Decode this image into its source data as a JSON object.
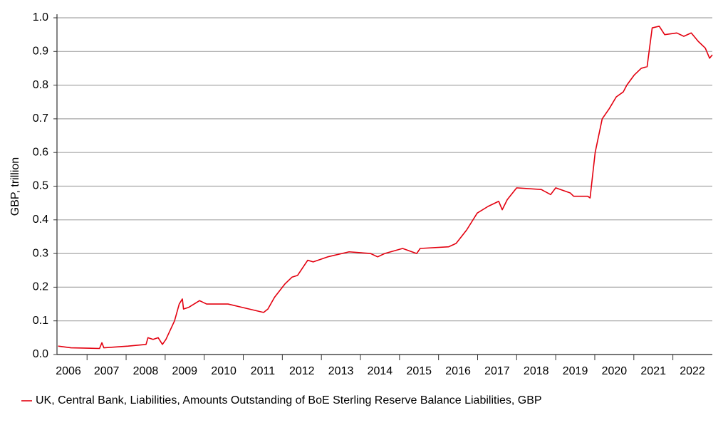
{
  "chart_data": {
    "type": "line",
    "y_label": "GBP, trillion",
    "x": [
      2006.26,
      2006.59,
      2007.32,
      2007.38,
      2007.43,
      2008.05,
      2008.51,
      2008.56,
      2008.69,
      2008.82,
      2008.93,
      2009.02,
      2009.24,
      2009.36,
      2009.44,
      2009.47,
      2009.6,
      2009.88,
      2010.06,
      2010.61,
      2010.97,
      2011.52,
      2011.63,
      2011.8,
      2012.07,
      2012.25,
      2012.39,
      2012.65,
      2012.79,
      2013.16,
      2013.71,
      2014.26,
      2014.44,
      2014.62,
      2015.08,
      2015.44,
      2015.53,
      2016.26,
      2016.45,
      2016.72,
      2016.99,
      2017.27,
      2017.54,
      2017.63,
      2017.76,
      2018.0,
      2018.63,
      2018.87,
      2019.0,
      2019.37,
      2019.46,
      2019.82,
      2019.88,
      2020.01,
      2020.19,
      2020.37,
      2020.55,
      2020.73,
      2020.82,
      2021.01,
      2021.19,
      2021.34,
      2021.47,
      2021.65,
      2021.79,
      2022.1,
      2022.28,
      2022.47,
      2022.65,
      2022.83,
      2022.94,
      2023.01
    ],
    "series": [
      {
        "name": "UK, Central Bank, Liabilities, Amounts Outstanding of BoE Sterling Reserve Balance Liabilities, GBP",
        "color": "#e3000f",
        "values": [
          0.025,
          0.02,
          0.018,
          0.035,
          0.02,
          0.025,
          0.03,
          0.05,
          0.045,
          0.05,
          0.03,
          0.045,
          0.1,
          0.15,
          0.165,
          0.135,
          0.14,
          0.16,
          0.15,
          0.15,
          0.14,
          0.125,
          0.135,
          0.17,
          0.21,
          0.23,
          0.235,
          0.28,
          0.275,
          0.29,
          0.305,
          0.3,
          0.29,
          0.3,
          0.315,
          0.3,
          0.315,
          0.32,
          0.33,
          0.37,
          0.42,
          0.44,
          0.455,
          0.43,
          0.46,
          0.495,
          0.49,
          0.475,
          0.495,
          0.48,
          0.47,
          0.47,
          0.465,
          0.6,
          0.7,
          0.73,
          0.765,
          0.78,
          0.8,
          0.83,
          0.85,
          0.855,
          0.97,
          0.975,
          0.95,
          0.955,
          0.945,
          0.955,
          0.93,
          0.91,
          0.88,
          0.89
        ]
      }
    ],
    "xlim": [
      2006.23,
      2023.01
    ],
    "xticks": [
      {
        "value": 2006,
        "label": "2006"
      },
      {
        "value": 2007,
        "label": "2007"
      },
      {
        "value": 2008,
        "label": "2008"
      },
      {
        "value": 2009,
        "label": "2009"
      },
      {
        "value": 2010,
        "label": "2010"
      },
      {
        "value": 2011,
        "label": "2011"
      },
      {
        "value": 2012,
        "label": "2012"
      },
      {
        "value": 2013,
        "label": "2013"
      },
      {
        "value": 2014,
        "label": "2014"
      },
      {
        "value": 2015,
        "label": "2015"
      },
      {
        "value": 2016,
        "label": "2016"
      },
      {
        "value": 2017,
        "label": "2017"
      },
      {
        "value": 2018,
        "label": "2018"
      },
      {
        "value": 2019,
        "label": "2019"
      },
      {
        "value": 2020,
        "label": "2020"
      },
      {
        "value": 2021,
        "label": "2021"
      },
      {
        "value": 2022,
        "label": "2022"
      }
    ],
    "ylim": [
      0,
      1
    ],
    "yticks": [
      {
        "value": 0,
        "label": "0.0"
      },
      {
        "value": 0.1,
        "label": "0.1"
      },
      {
        "value": 0.2,
        "label": "0.2"
      },
      {
        "value": 0.3,
        "label": "0.3"
      },
      {
        "value": 0.4,
        "label": "0.4"
      },
      {
        "value": 0.5,
        "label": "0.5"
      },
      {
        "value": 0.6,
        "label": "0.6"
      },
      {
        "value": 0.7,
        "label": "0.7"
      },
      {
        "value": 0.8,
        "label": "0.8"
      },
      {
        "value": 0.9,
        "label": "0.9"
      },
      {
        "value": 1,
        "label": "1.0"
      }
    ],
    "grid": true,
    "legend": "bottom"
  }
}
